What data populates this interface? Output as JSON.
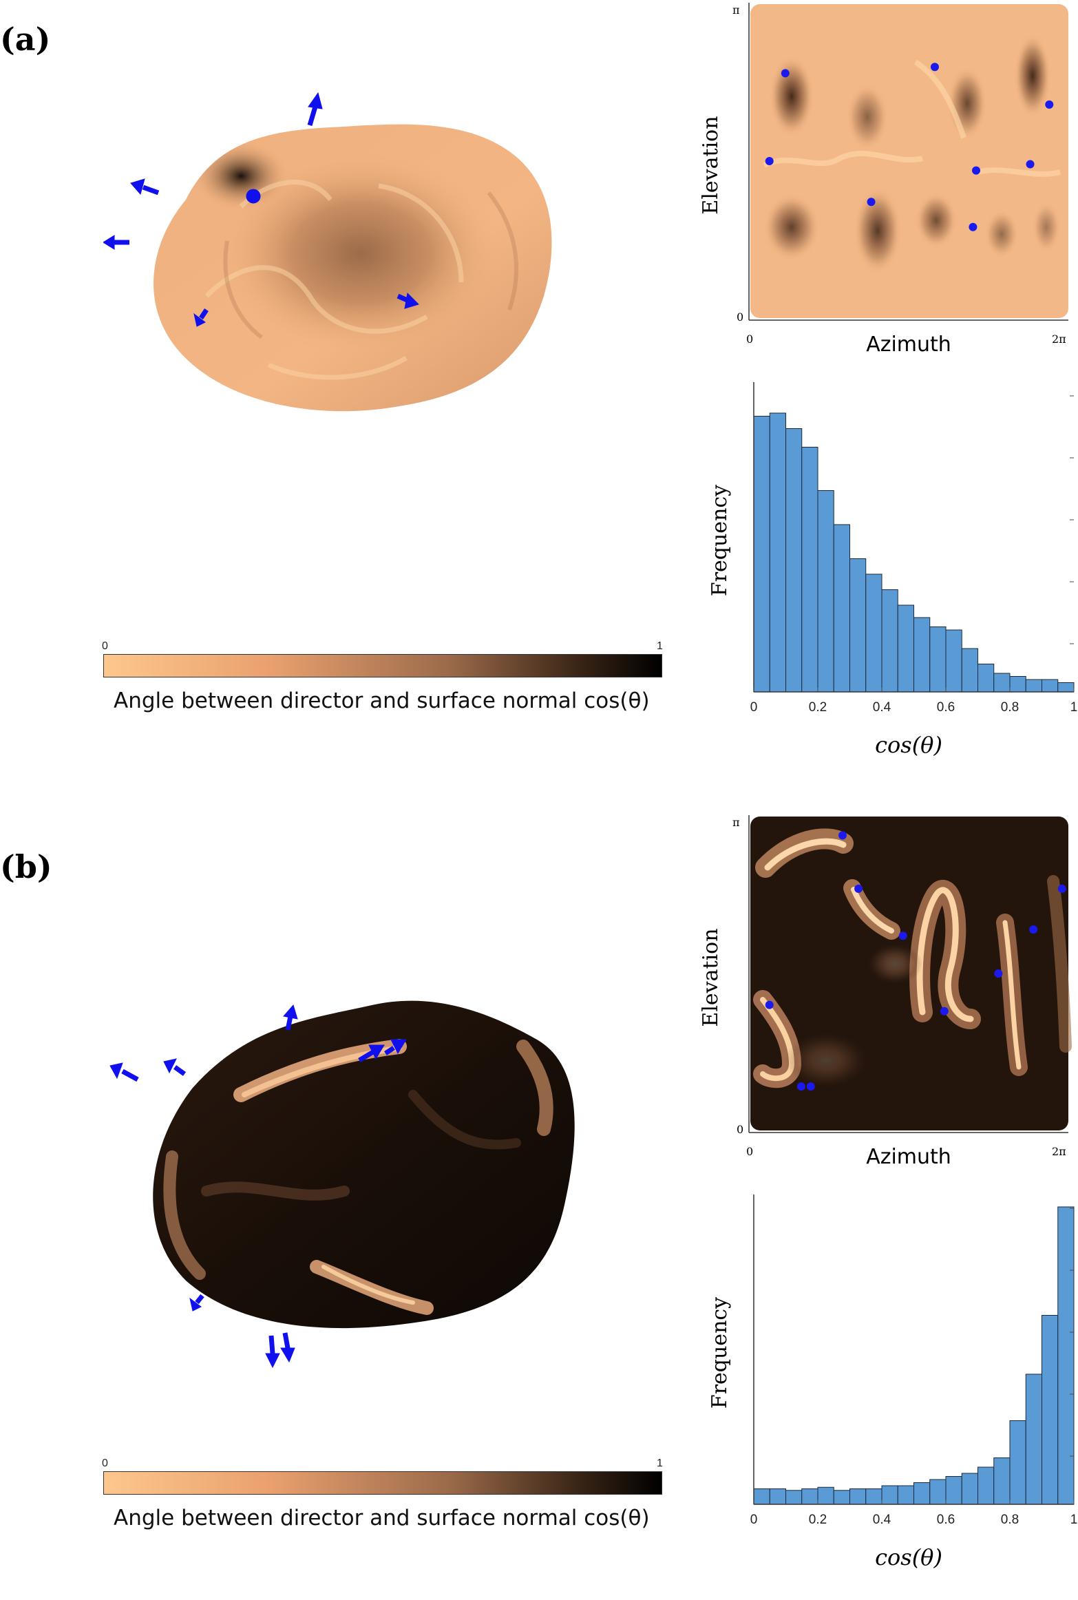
{
  "panels": [
    {
      "label": "(a)",
      "colorbar": {
        "min_label": "0",
        "max_label": "1",
        "caption": "Angle between director and surface normal cos(θ)"
      },
      "map": {
        "ylabel": "Elevation",
        "xlabel": "Azimuth",
        "y_ticks": [
          "π",
          "0"
        ],
        "x_ticks": [
          "0",
          "2π"
        ],
        "defects_note": "blue dots mark defect locations",
        "defects": [
          [
            0.11,
            0.78
          ],
          [
            0.06,
            0.5
          ],
          [
            0.58,
            0.8
          ],
          [
            0.94,
            0.68
          ],
          [
            0.71,
            0.47
          ],
          [
            0.88,
            0.49
          ],
          [
            0.38,
            0.37
          ],
          [
            0.7,
            0.29
          ]
        ]
      },
      "histogram": {
        "ylabel": "Frequency",
        "xlabel": "cos(θ)",
        "x_ticks": [
          "0",
          "0.2",
          "0.4",
          "0.6",
          "0.8",
          "1"
        ]
      },
      "chart_data": {
        "type": "bar",
        "title": "",
        "xlabel": "cos(θ)",
        "ylabel": "Frequency",
        "xlim": [
          0,
          1
        ],
        "bin_width": 0.05,
        "values": [
          0.89,
          0.9,
          0.85,
          0.79,
          0.65,
          0.54,
          0.43,
          0.38,
          0.33,
          0.28,
          0.24,
          0.21,
          0.2,
          0.14,
          0.09,
          0.06,
          0.05,
          0.04,
          0.04,
          0.03
        ],
        "bar_color": "#5b9bd5"
      }
    },
    {
      "label": "(b)",
      "colorbar": {
        "min_label": "0",
        "max_label": "1",
        "caption": "Angle between director and surface normal cos(θ)"
      },
      "map": {
        "ylabel": "Elevation",
        "xlabel": "Azimuth",
        "y_ticks": [
          "π",
          "0"
        ],
        "x_ticks": [
          "0",
          "2π"
        ],
        "defects": [
          [
            0.29,
            0.94
          ],
          [
            0.34,
            0.77
          ],
          [
            0.48,
            0.62
          ],
          [
            0.98,
            0.77
          ],
          [
            0.89,
            0.64
          ],
          [
            0.78,
            0.5
          ],
          [
            0.61,
            0.38
          ],
          [
            0.06,
            0.4
          ],
          [
            0.16,
            0.14
          ],
          [
            0.19,
            0.14
          ]
        ]
      },
      "histogram": {
        "ylabel": "Frequency",
        "xlabel": "cos(θ)",
        "x_ticks": [
          "0",
          "0.2",
          "0.4",
          "0.6",
          "0.8",
          "1"
        ]
      },
      "chart_data": {
        "type": "bar",
        "title": "",
        "xlabel": "cos(θ)",
        "ylabel": "Frequency",
        "xlim": [
          0,
          1
        ],
        "bin_width": 0.05,
        "values": [
          0.05,
          0.05,
          0.045,
          0.05,
          0.055,
          0.045,
          0.05,
          0.05,
          0.06,
          0.06,
          0.07,
          0.08,
          0.09,
          0.1,
          0.12,
          0.15,
          0.27,
          0.42,
          0.61,
          0.96
        ],
        "bar_color": "#5b9bd5"
      }
    }
  ]
}
